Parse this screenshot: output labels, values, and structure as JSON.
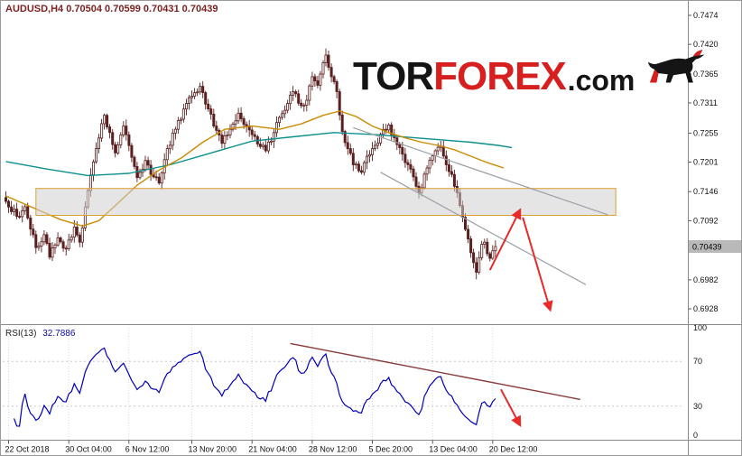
{
  "header": {
    "symbol_info": "AUDUSD,H4 0.70504 0.70599 0.70431 0.70439",
    "color": "#7c1f1f"
  },
  "logo": {
    "part1": "TOR",
    "part2": "FOREX",
    "part3": ".com",
    "part1_color": "#141414",
    "part2_color": "#d81f1f",
    "part3_color": "#141414",
    "icon": "bull-icon"
  },
  "chart_data": [
    {
      "id": "price-main",
      "type": "candlestick",
      "symbol": "AUDUSD",
      "timeframe": "H4",
      "ohlc_current": {
        "open": 0.70504,
        "high": 0.70599,
        "low": 0.70431,
        "close": 0.70439
      },
      "num_candles": 180,
      "close_anchors": [
        [
          0,
          0.7128
        ],
        [
          4,
          0.71
        ],
        [
          7,
          0.7118
        ],
        [
          11,
          0.7042
        ],
        [
          14,
          0.7066
        ],
        [
          16,
          0.7024
        ],
        [
          19,
          0.706
        ],
        [
          22,
          0.704
        ],
        [
          25,
          0.708
        ],
        [
          27,
          0.7052
        ],
        [
          30,
          0.7148
        ],
        [
          33,
          0.7226
        ],
        [
          36,
          0.7288
        ],
        [
          38,
          0.7256
        ],
        [
          40,
          0.7218
        ],
        [
          43,
          0.7268
        ],
        [
          46,
          0.721
        ],
        [
          48,
          0.7172
        ],
        [
          51,
          0.7204
        ],
        [
          53,
          0.7178
        ],
        [
          56,
          0.7162
        ],
        [
          59,
          0.7226
        ],
        [
          62,
          0.7262
        ],
        [
          66,
          0.731
        ],
        [
          69,
          0.733
        ],
        [
          71,
          0.7342
        ],
        [
          74,
          0.73
        ],
        [
          76,
          0.7268
        ],
        [
          79,
          0.7236
        ],
        [
          82,
          0.7262
        ],
        [
          85,
          0.7292
        ],
        [
          88,
          0.7268
        ],
        [
          90,
          0.7252
        ],
        [
          93,
          0.723
        ],
        [
          95,
          0.7222
        ],
        [
          98,
          0.7256
        ],
        [
          100,
          0.7284
        ],
        [
          103,
          0.731
        ],
        [
          105,
          0.7332
        ],
        [
          108,
          0.7306
        ],
        [
          110,
          0.7316
        ],
        [
          112,
          0.736
        ],
        [
          114,
          0.7344
        ],
        [
          116,
          0.7386
        ],
        [
          117,
          0.74
        ],
        [
          119,
          0.736
        ],
        [
          121,
          0.7332
        ],
        [
          123,
          0.7258
        ],
        [
          125,
          0.7226
        ],
        [
          127,
          0.7196
        ],
        [
          130,
          0.7182
        ],
        [
          132,
          0.7212
        ],
        [
          135,
          0.7232
        ],
        [
          138,
          0.7262
        ],
        [
          140,
          0.727
        ],
        [
          142,
          0.7246
        ],
        [
          144,
          0.7228
        ],
        [
          146,
          0.72
        ],
        [
          148,
          0.7188
        ],
        [
          151,
          0.7144
        ],
        [
          154,
          0.719
        ],
        [
          157,
          0.7222
        ],
        [
          159,
          0.723
        ],
        [
          161,
          0.7196
        ],
        [
          163,
          0.7178
        ],
        [
          166,
          0.712
        ],
        [
          169,
          0.7058
        ],
        [
          171,
          0.7014
        ],
        [
          172,
          0.6996
        ],
        [
          174,
          0.7048
        ],
        [
          175,
          0.7052
        ],
        [
          177,
          0.7022
        ],
        [
          178,
          0.7036
        ],
        [
          179,
          0.70439
        ]
      ],
      "y_axis": {
        "top_price": 0.7474,
        "bottom_price": 0.6928
      },
      "price_labels": [
        "0.7474",
        "0.7420",
        "0.7365",
        "0.7311",
        "0.7255",
        "0.7201",
        "0.7146",
        "0.7092",
        "0.6982",
        "0.6928"
      ],
      "current_price": {
        "text": "0.70439",
        "price": 0.70439,
        "badge_bg": "#b9b9b9",
        "text_color": "#000000"
      },
      "time_ticks": [
        {
          "label": "22 Oct 2018",
          "slot": 1
        },
        {
          "label": "30 Oct 04:00",
          "slot": 23
        },
        {
          "label": "6 Nov 12:00",
          "slot": 45
        },
        {
          "label": "13 Nov 20:00",
          "slot": 68
        },
        {
          "label": "21 Nov 04:00",
          "slot": 90
        },
        {
          "label": "28 Nov 12:00",
          "slot": 112
        },
        {
          "label": "5 Dec 20:00",
          "slot": 134
        },
        {
          "label": "13 Dec 04:00",
          "slot": 156
        },
        {
          "label": "20 Dec 12:00",
          "slot": 178
        }
      ],
      "candle_colors": {
        "bull": "#ffffff",
        "bear": "#5a1f1f",
        "outline": "#5a1f1f"
      },
      "ma_fast": {
        "name": "ma-fast-orange",
        "color": "#cc8a00",
        "points": [
          [
            0,
            0.7138
          ],
          [
            10,
            0.7116
          ],
          [
            20,
            0.7094
          ],
          [
            28,
            0.7082
          ],
          [
            34,
            0.7092
          ],
          [
            40,
            0.712
          ],
          [
            48,
            0.7158
          ],
          [
            56,
            0.7186
          ],
          [
            64,
            0.7208
          ],
          [
            72,
            0.7238
          ],
          [
            80,
            0.7262
          ],
          [
            90,
            0.7268
          ],
          [
            100,
            0.7262
          ],
          [
            108,
            0.7272
          ],
          [
            116,
            0.7288
          ],
          [
            122,
            0.7296
          ],
          [
            128,
            0.7286
          ],
          [
            134,
            0.7268
          ],
          [
            140,
            0.7256
          ],
          [
            146,
            0.7246
          ],
          [
            152,
            0.7238
          ],
          [
            158,
            0.7232
          ],
          [
            164,
            0.7224
          ],
          [
            170,
            0.7212
          ],
          [
            176,
            0.72
          ],
          [
            182,
            0.719
          ]
        ]
      },
      "ma_slow": {
        "name": "ma-slow-teal",
        "color": "#0d8f8f",
        "points": [
          [
            0,
            0.7202
          ],
          [
            15,
            0.7188
          ],
          [
            30,
            0.7176
          ],
          [
            45,
            0.718
          ],
          [
            60,
            0.7196
          ],
          [
            75,
            0.7218
          ],
          [
            90,
            0.724
          ],
          [
            105,
            0.7248
          ],
          [
            120,
            0.7256
          ],
          [
            135,
            0.7252
          ],
          [
            150,
            0.7246
          ],
          [
            160,
            0.7242
          ],
          [
            170,
            0.7238
          ],
          [
            180,
            0.7232
          ],
          [
            185,
            0.7228
          ]
        ]
      },
      "channel": {
        "color": "#9aa0a6",
        "upper": [
          [
            127,
            0.7265
          ],
          [
            220,
            0.7103
          ]
        ],
        "lower": [
          [
            137,
            0.7182
          ],
          [
            212,
            0.6973
          ]
        ]
      },
      "resistance_zone": {
        "from_slot": 11,
        "to_slot": 223,
        "top_price": 0.7152,
        "bottom_price": 0.7102,
        "fill": "#cfcfcf",
        "fill_opacity": 0.55,
        "border": "#dd9f2e"
      },
      "forecast_arrows": {
        "color": "#e82a2a",
        "arrows": [
          {
            "from": [
              177,
              0.7
            ],
            "to": [
              188,
              0.7112
            ]
          },
          {
            "from": [
              189,
              0.7098
            ],
            "to": [
              199,
              0.6926
            ]
          }
        ]
      }
    },
    {
      "id": "rsi-panel",
      "type": "line",
      "label": "RSI(13)",
      "value_text": "32.7886",
      "period": 13,
      "y_range": [
        0,
        100
      ],
      "levels": [
        100,
        70,
        30,
        0
      ],
      "line_color": "#0000bb",
      "trendline": {
        "color": "#8a3b3b",
        "points": [
          [
            104,
            86
          ],
          [
            210,
            36
          ]
        ]
      },
      "arrow": {
        "color": "#e82a2a",
        "from": [
          181,
          45
        ],
        "to": [
          188,
          13
        ]
      }
    }
  ]
}
